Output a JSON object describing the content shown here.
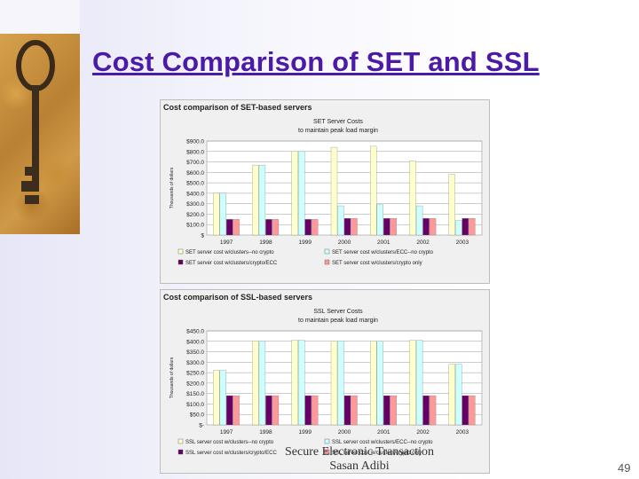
{
  "slide": {
    "title": "Cost Comparison of SET and SSL",
    "footer_line1": "Secure Electronic Transaction",
    "footer_line2": "Sasan Adibi",
    "page_number": "49"
  },
  "colors": {
    "title": "#4b1aa6",
    "series": [
      "#ffffcc",
      "#ccffff",
      "#660066",
      "#ff9999"
    ]
  },
  "chart_data": [
    {
      "type": "bar",
      "figure_title": "Cost comparison of SET-based servers",
      "title": "SET Server Costs",
      "subtitle": "to maintain peak load margin",
      "ylabel": "Thousands of dollars",
      "ylim": [
        0,
        900
      ],
      "yticks": [
        "$",
        "$100.0",
        "$200.0",
        "$300.0",
        "$400.0",
        "$500.0",
        "$600.0",
        "$700.0",
        "$800.0",
        "$900.0"
      ],
      "categories": [
        "1997",
        "1998",
        "1999",
        "2000",
        "2001",
        "2002",
        "2003"
      ],
      "series": [
        {
          "name": "SET server cost w/clusters--no crypto",
          "values": [
            400,
            670,
            800,
            840,
            850,
            710,
            580
          ]
        },
        {
          "name": "SET server cost w/clusters/ECC--no crypto",
          "values": [
            400,
            670,
            800,
            280,
            290,
            280,
            140
          ]
        },
        {
          "name": "SET server cost w/clusters/crypto/ECC",
          "values": [
            150,
            150,
            150,
            160,
            160,
            160,
            160
          ]
        },
        {
          "name": "SET server cost w/clusters/crypto only",
          "values": [
            150,
            150,
            150,
            160,
            160,
            160,
            160
          ]
        }
      ],
      "legend_position": "bottom",
      "grid": true
    },
    {
      "type": "bar",
      "figure_title": "Cost comparison of SSL-based servers",
      "title": "SSL Server Costs",
      "subtitle": "to maintain peak load margin",
      "ylabel": "Thousands of dollars",
      "ylim": [
        0,
        450
      ],
      "yticks": [
        "$-",
        "$50.0",
        "$100.0",
        "$150.0",
        "$200.0",
        "$250.0",
        "$300.0",
        "$350.0",
        "$400.0",
        "$450.0"
      ],
      "categories": [
        "1997",
        "1998",
        "1999",
        "2000",
        "2001",
        "2002",
        "2003"
      ],
      "series": [
        {
          "name": "SSL server cost w/clusters--no crypto",
          "values": [
            260,
            400,
            405,
            400,
            400,
            405,
            290
          ]
        },
        {
          "name": "SSL server cost w/clusters/ECC--no crypto",
          "values": [
            260,
            400,
            405,
            400,
            400,
            405,
            290
          ]
        },
        {
          "name": "SSL server cost w/clusters/crypto/ECC",
          "values": [
            140,
            140,
            140,
            140,
            140,
            140,
            140
          ]
        },
        {
          "name": "SSL server cost w/clusters/crypto only",
          "values": [
            140,
            140,
            140,
            140,
            140,
            140,
            140
          ]
        }
      ],
      "legend_position": "bottom",
      "grid": true
    }
  ]
}
